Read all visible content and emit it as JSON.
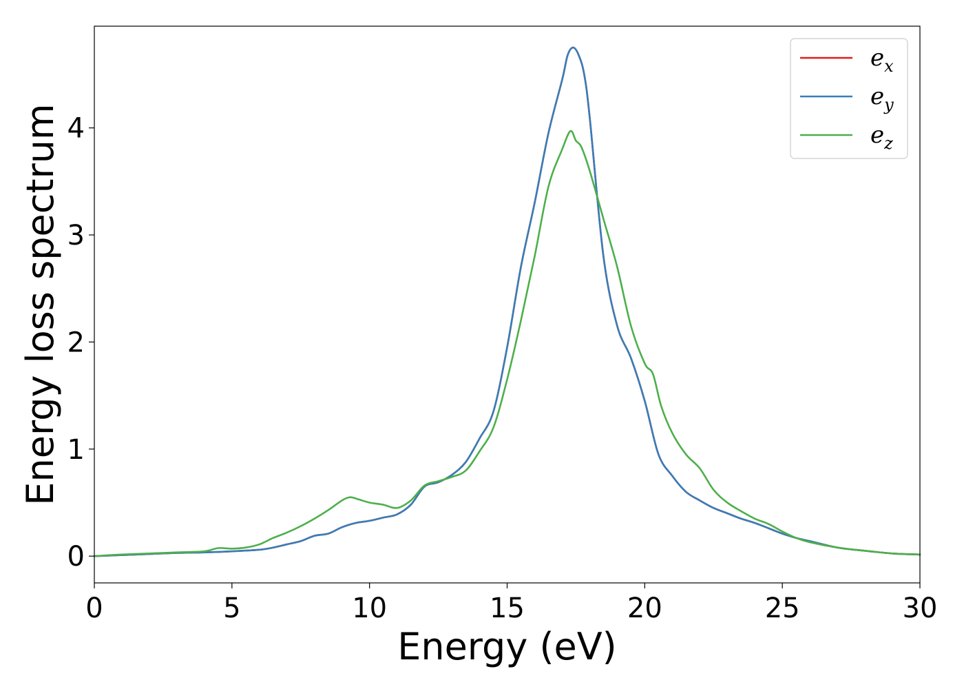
{
  "chart_data": {
    "type": "line",
    "xlabel": "Energy (eV)",
    "ylabel": "Energy loss spectrum",
    "xlim": [
      0,
      30
    ],
    "ylim": [
      -0.25,
      4.95
    ],
    "xticks": [
      0,
      5,
      10,
      15,
      20,
      25,
      30
    ],
    "yticks": [
      0,
      1,
      2,
      3,
      4
    ],
    "grid": false,
    "legend_position": "top-right",
    "series": [
      {
        "name": "e_x",
        "label_base": "e",
        "label_sub": "x",
        "color": "#e41a1c",
        "x": [
          0,
          1,
          2,
          3,
          4,
          5,
          6,
          6.5,
          7,
          7.5,
          8,
          8.5,
          9,
          9.5,
          10,
          10.5,
          11,
          11.5,
          12,
          12.5,
          13,
          13.5,
          14,
          14.5,
          15,
          15.5,
          16,
          16.5,
          17,
          17.2,
          17.4,
          17.6,
          17.8,
          18,
          18.5,
          19,
          19.5,
          20,
          20.5,
          21,
          21.5,
          22,
          22.5,
          23,
          23.5,
          24,
          24.5,
          25,
          25.5,
          26,
          27,
          28,
          29,
          30
        ],
        "y": [
          0,
          0.01,
          0.02,
          0.03,
          0.035,
          0.045,
          0.06,
          0.08,
          0.11,
          0.14,
          0.19,
          0.21,
          0.27,
          0.31,
          0.33,
          0.36,
          0.39,
          0.48,
          0.65,
          0.69,
          0.76,
          0.88,
          1.1,
          1.35,
          1.95,
          2.7,
          3.3,
          3.95,
          4.45,
          4.68,
          4.75,
          4.68,
          4.5,
          4.1,
          2.8,
          2.15,
          1.85,
          1.45,
          0.95,
          0.75,
          0.6,
          0.52,
          0.45,
          0.4,
          0.35,
          0.31,
          0.26,
          0.21,
          0.17,
          0.14,
          0.08,
          0.05,
          0.025,
          0.015
        ]
      },
      {
        "name": "e_y",
        "label_base": "e",
        "label_sub": "y",
        "color": "#377eb8",
        "x": [
          0,
          1,
          2,
          3,
          4,
          5,
          6,
          6.5,
          7,
          7.5,
          8,
          8.5,
          9,
          9.5,
          10,
          10.5,
          11,
          11.5,
          12,
          12.5,
          13,
          13.5,
          14,
          14.5,
          15,
          15.5,
          16,
          16.5,
          17,
          17.2,
          17.4,
          17.6,
          17.8,
          18,
          18.5,
          19,
          19.5,
          20,
          20.5,
          21,
          21.5,
          22,
          22.5,
          23,
          23.5,
          24,
          24.5,
          25,
          25.5,
          26,
          27,
          28,
          29,
          30
        ],
        "y": [
          0,
          0.01,
          0.02,
          0.03,
          0.035,
          0.045,
          0.06,
          0.08,
          0.11,
          0.14,
          0.19,
          0.21,
          0.27,
          0.31,
          0.33,
          0.36,
          0.39,
          0.48,
          0.65,
          0.69,
          0.76,
          0.88,
          1.1,
          1.35,
          1.95,
          2.7,
          3.3,
          3.95,
          4.45,
          4.68,
          4.75,
          4.68,
          4.5,
          4.1,
          2.8,
          2.15,
          1.85,
          1.45,
          0.95,
          0.75,
          0.6,
          0.52,
          0.45,
          0.4,
          0.35,
          0.31,
          0.26,
          0.21,
          0.17,
          0.14,
          0.08,
          0.05,
          0.025,
          0.015
        ]
      },
      {
        "name": "e_z",
        "label_base": "e",
        "label_sub": "z",
        "color": "#4daf4a",
        "x": [
          0,
          1,
          2,
          3,
          4,
          4.5,
          5,
          5.5,
          6,
          6.5,
          7,
          7.5,
          8,
          8.5,
          9,
          9.3,
          9.6,
          10,
          10.5,
          11,
          11.5,
          12,
          12.5,
          13,
          13.5,
          14,
          14.5,
          15,
          15.5,
          16,
          16.5,
          17,
          17.3,
          17.5,
          17.7,
          18,
          18.5,
          19,
          19.5,
          20,
          20.3,
          20.6,
          21,
          21.5,
          22,
          22.5,
          23,
          23.5,
          24,
          24.5,
          25,
          25.5,
          26,
          27,
          28,
          29,
          30
        ],
        "y": [
          0,
          0.015,
          0.025,
          0.035,
          0.045,
          0.075,
          0.07,
          0.08,
          0.11,
          0.17,
          0.22,
          0.28,
          0.35,
          0.43,
          0.52,
          0.55,
          0.53,
          0.5,
          0.48,
          0.45,
          0.52,
          0.66,
          0.7,
          0.74,
          0.8,
          0.98,
          1.2,
          1.65,
          2.2,
          2.8,
          3.45,
          3.8,
          3.97,
          3.88,
          3.82,
          3.6,
          3.15,
          2.7,
          2.15,
          1.8,
          1.7,
          1.4,
          1.15,
          0.95,
          0.82,
          0.62,
          0.5,
          0.42,
          0.35,
          0.3,
          0.23,
          0.17,
          0.13,
          0.08,
          0.05,
          0.025,
          0.015
        ]
      }
    ]
  }
}
